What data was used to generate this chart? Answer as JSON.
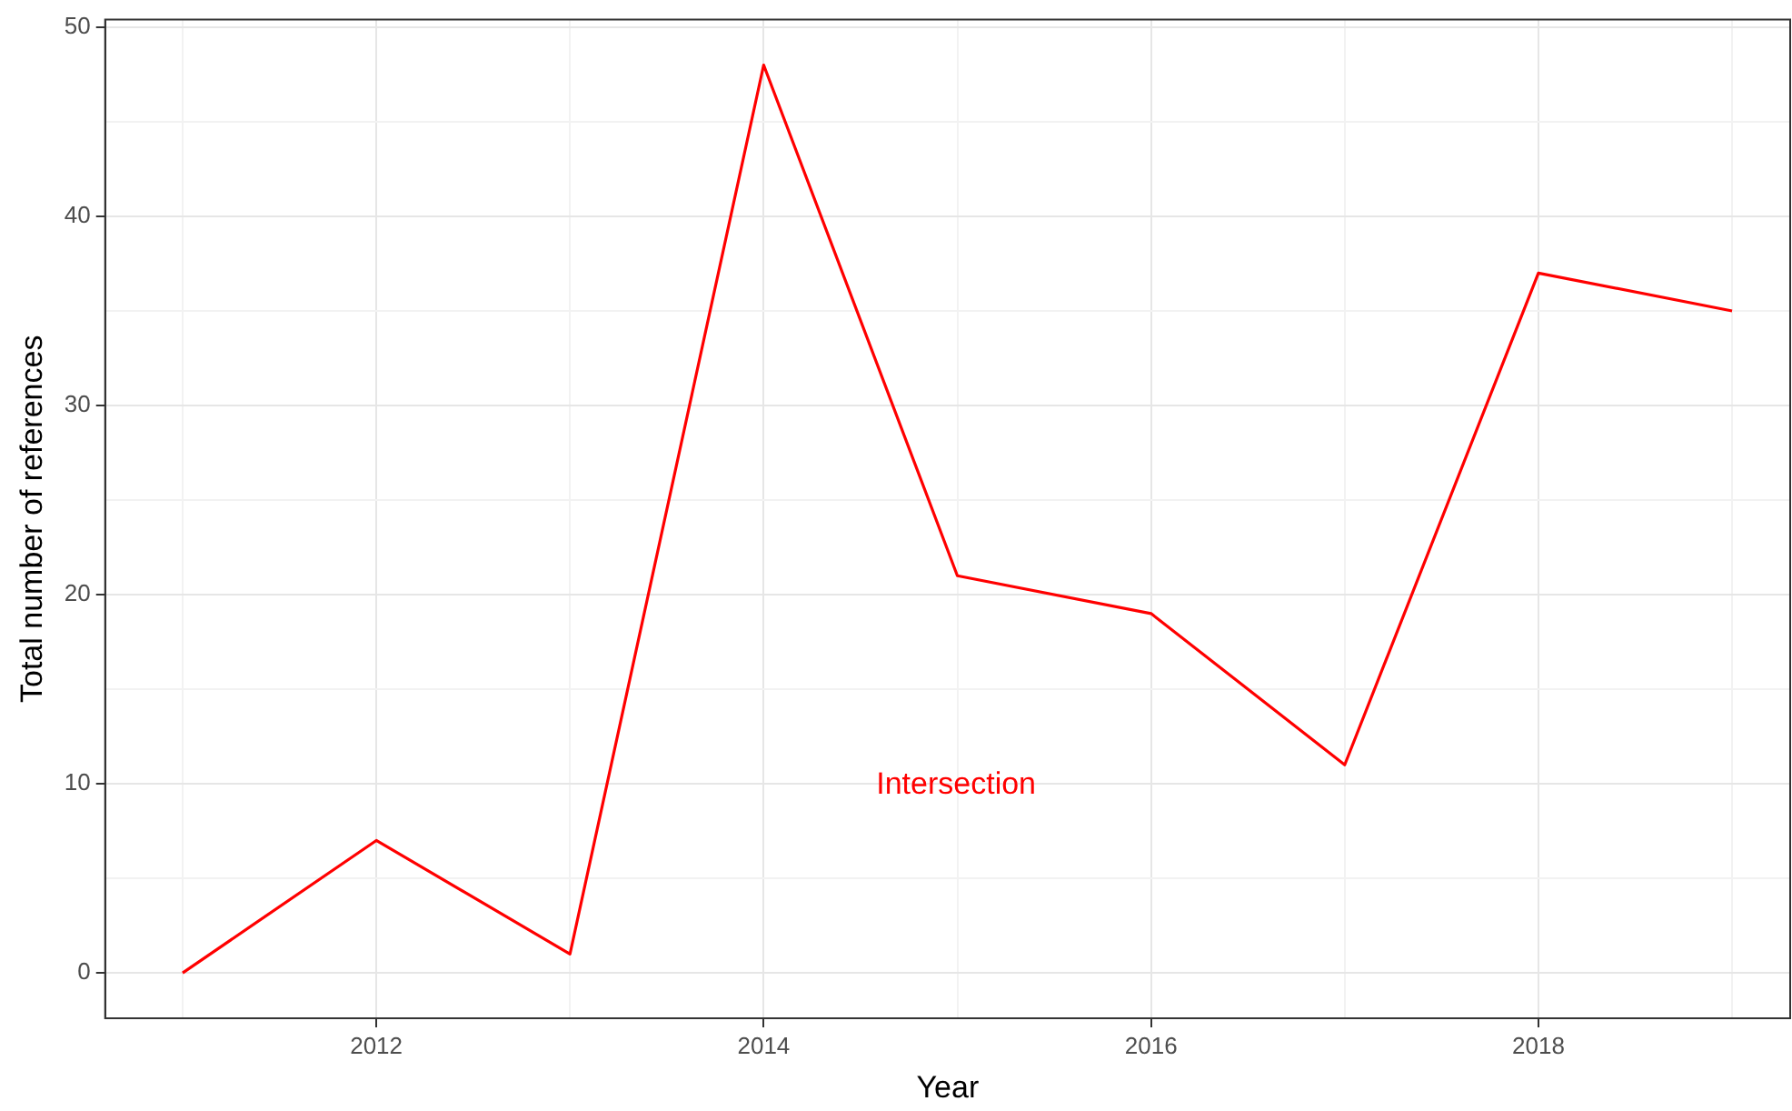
{
  "chart_data": {
    "type": "line",
    "xlabel": "Year",
    "ylabel": "Total number of references",
    "x": [
      2011,
      2012,
      2013,
      2014,
      2015,
      2016,
      2017,
      2018,
      2019
    ],
    "series": [
      {
        "color": "#ff0000",
        "values": [
          0,
          7,
          1,
          48,
          21,
          19,
          11,
          37,
          35
        ]
      }
    ],
    "xlim": [
      2010.6,
      2019.3
    ],
    "xticks": [
      {
        "value": 2011,
        "label": null
      },
      2012,
      {
        "value": 2013,
        "label": null
      },
      2014,
      {
        "value": 2015,
        "label": null
      },
      2016,
      {
        "value": 2017,
        "label": null
      },
      2018,
      {
        "value": 2019,
        "label": null
      }
    ],
    "ylim": [
      -2.4,
      50.4
    ],
    "yticks": [
      0,
      {
        "value": 5,
        "label": null
      },
      10,
      {
        "value": 15,
        "label": null
      },
      20,
      {
        "value": 25,
        "label": null
      },
      30,
      {
        "value": 35,
        "label": null
      },
      40,
      {
        "value": 45,
        "label": null
      },
      50
    ],
    "annotations": [
      "Intersection"
    ],
    "grid": true,
    "legend": false,
    "marker": "none",
    "line_style": "solid"
  }
}
